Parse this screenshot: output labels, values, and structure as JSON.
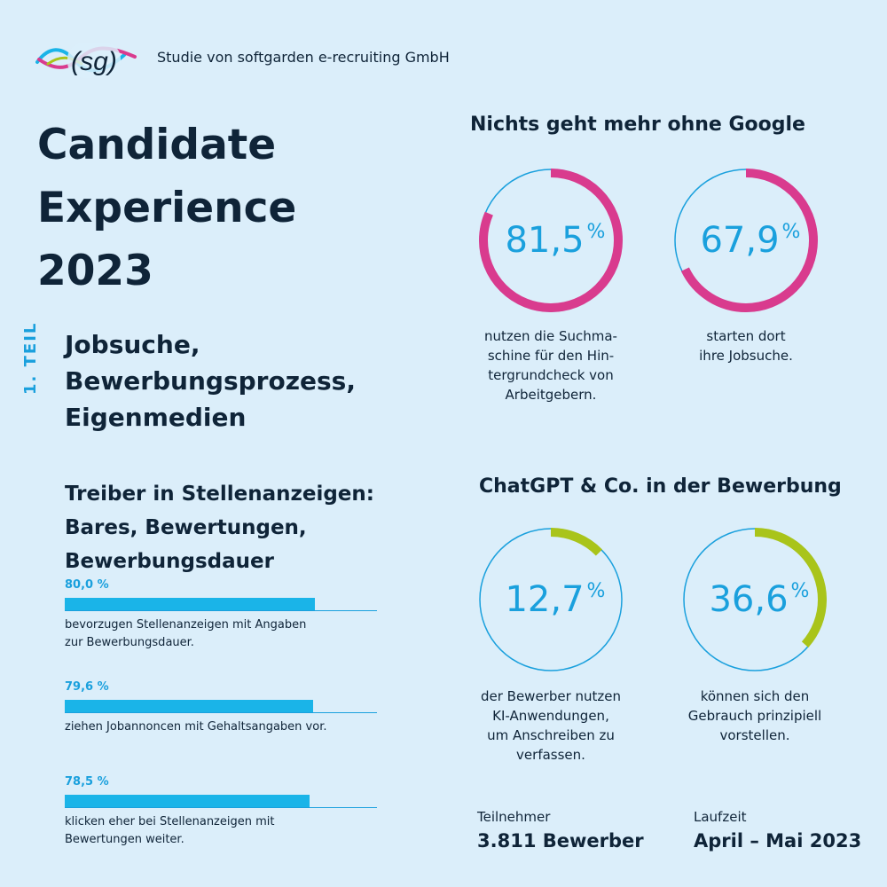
{
  "header": {
    "logo_text": "(sg)",
    "publisher": "Studie von softgarden e-recruiting GmbH"
  },
  "title_lines": [
    "Candidate",
    "Experience",
    "2023"
  ],
  "part_label": "1. TEIL",
  "subtitle_lines": [
    "Jobsuche,",
    "Bewerbungsprozess,",
    "Eigenmedien"
  ],
  "colors": {
    "background": "#dbeefa",
    "text": "#0f2438",
    "accent_blue": "#1aa0dd",
    "bar_fill": "#1ab4e8",
    "ring_magenta": "#d93b8e",
    "ring_lime": "#a9c41a"
  },
  "chart_data": [
    {
      "type": "bar",
      "orientation": "horizontal",
      "title_lines": [
        "Treiber in Stellenanzeigen:",
        "Bares, Bewertungen,",
        "Bewerbungsdauer"
      ],
      "xlim": [
        0,
        100
      ],
      "items": [
        {
          "value": 80.0,
          "label": "80,0 %",
          "description_lines": [
            "bevorzugen Stellenanzeigen mit Angaben",
            "zur Bewerbungsdauer."
          ]
        },
        {
          "value": 79.6,
          "label": "79,6 %",
          "description_lines": [
            "ziehen Jobannoncen mit Gehaltsangaben vor."
          ]
        },
        {
          "value": 78.5,
          "label": "78,5 %",
          "description_lines": [
            "klicken eher bei Stellenanzeigen mit",
            "Bewertungen weiter."
          ]
        }
      ]
    },
    {
      "type": "pie",
      "variant": "donut",
      "title": "Nichts geht mehr ohne Google",
      "items": [
        {
          "value": 81.5,
          "label": "81,5",
          "unit": "%",
          "color": "#d93b8e",
          "description_lines": [
            "nutzen die Suchma-",
            "schine für den Hin-",
            "tergrundcheck von",
            "Arbeitgebern."
          ]
        },
        {
          "value": 67.9,
          "label": "67,9",
          "unit": "%",
          "color": "#d93b8e",
          "description_lines": [
            "starten dort",
            "ihre Jobsuche."
          ]
        }
      ]
    },
    {
      "type": "pie",
      "variant": "donut",
      "title": "ChatGPT & Co. in der Bewerbung",
      "items": [
        {
          "value": 12.7,
          "label": "12,7",
          "unit": "%",
          "color": "#a9c41a",
          "description_lines": [
            "der Bewerber nutzen",
            "KI-Anwendungen,",
            "um Anschreiben zu",
            "verfassen."
          ]
        },
        {
          "value": 36.6,
          "label": "36,6",
          "unit": "%",
          "color": "#a9c41a",
          "description_lines": [
            "können sich den",
            "Gebrauch prinzipiell",
            "vorstellen."
          ]
        }
      ]
    }
  ],
  "footer": {
    "participants_label": "Teilnehmer",
    "participants_value": "3.811 Bewerber",
    "period_label": "Laufzeit",
    "period_value": "April – Mai 2023"
  }
}
